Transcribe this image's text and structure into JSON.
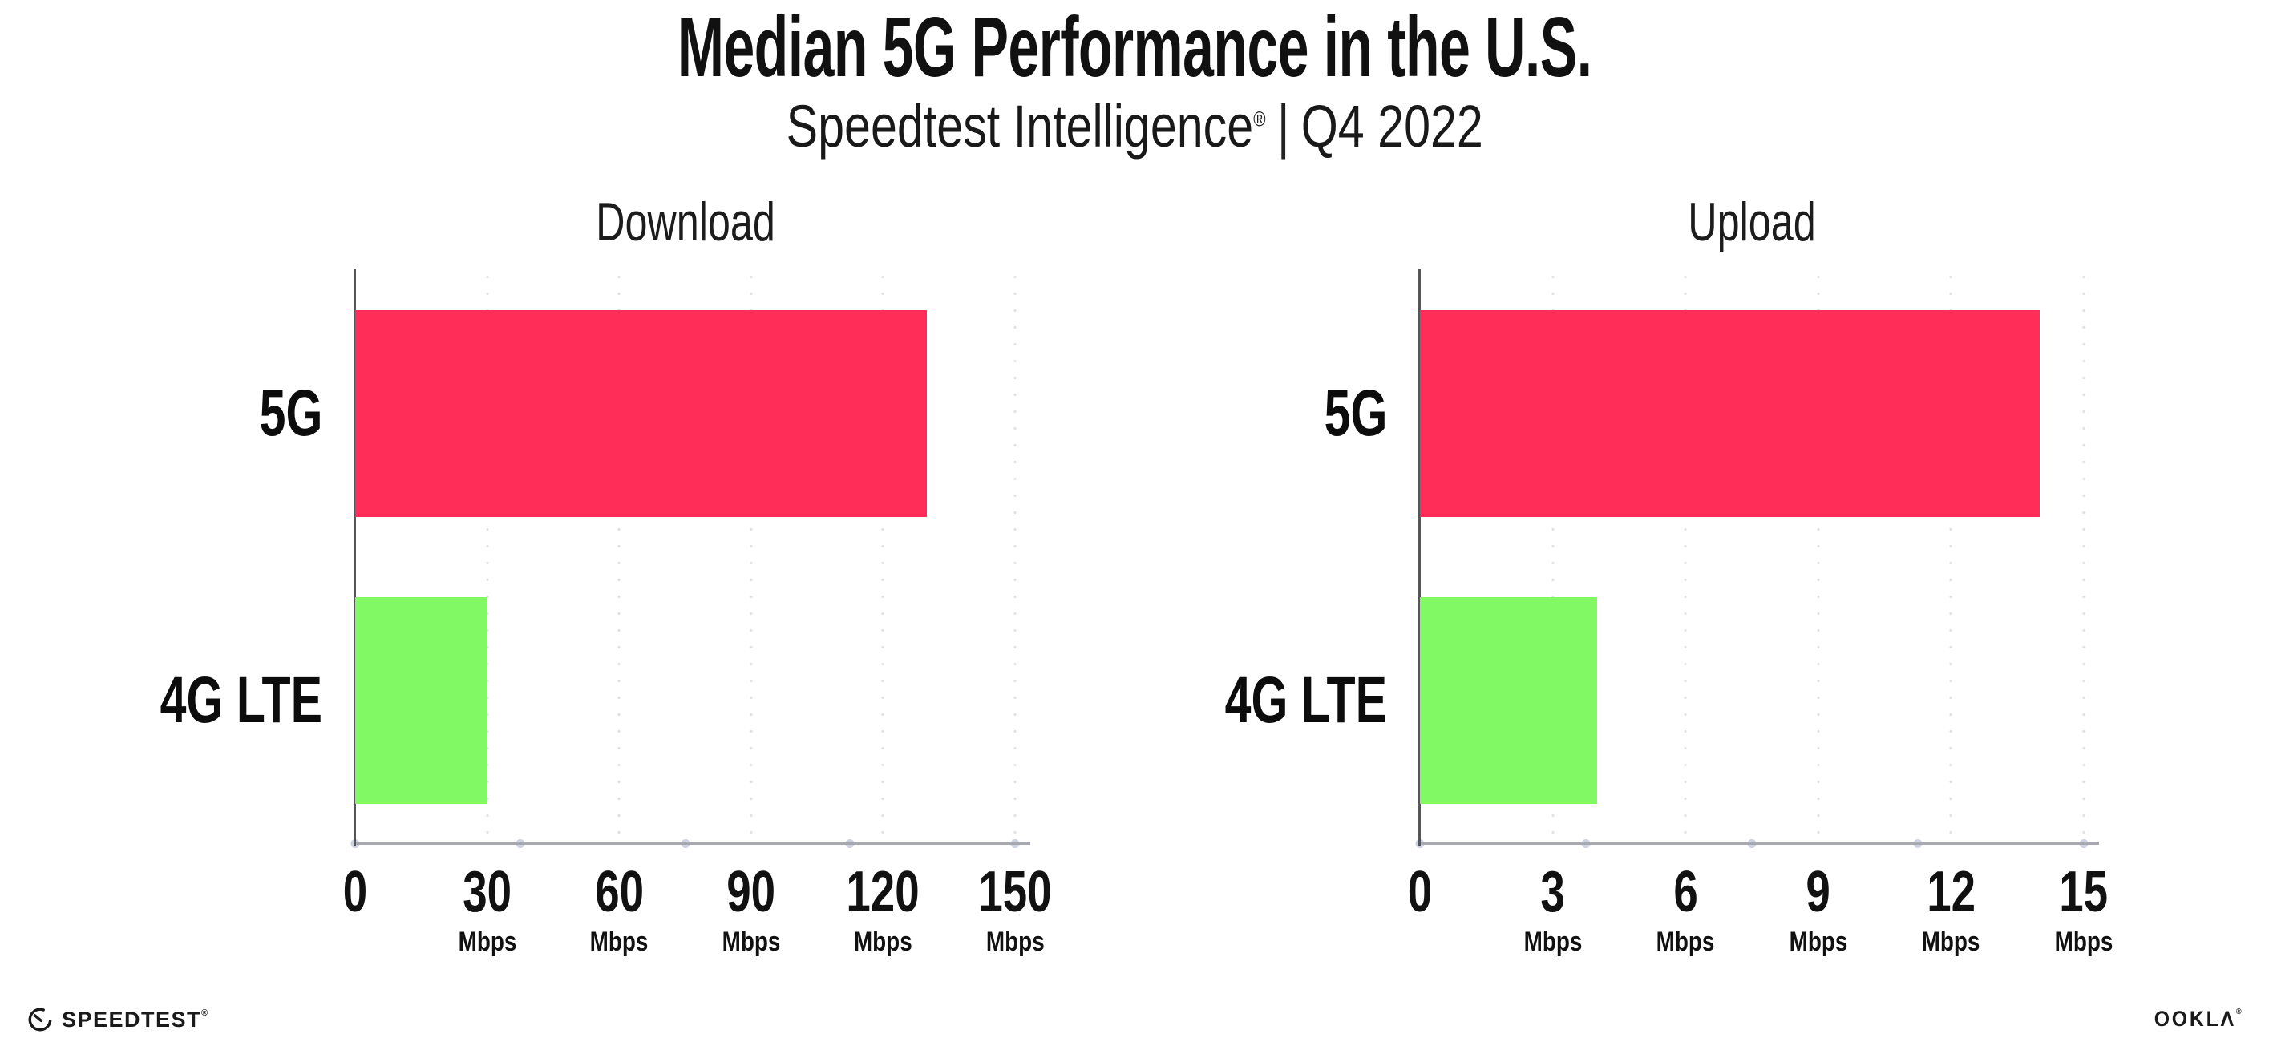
{
  "header": {
    "title": "Median 5G Performance in the U.S.",
    "subtitle": {
      "brand": "Speedtest Intelligence",
      "reg_mark": "®",
      "divider": "|",
      "period": "Q4 2022"
    }
  },
  "chart_data": [
    {
      "type": "bar",
      "orientation": "horizontal",
      "title": "Download",
      "categories": [
        "5G",
        "4G LTE"
      ],
      "values": [
        130,
        30
      ],
      "unit": "Mbps",
      "xlim": [
        0,
        150
      ],
      "xticks": [
        0,
        30,
        60,
        90,
        120,
        150
      ],
      "tick_unit_label": "Mbps",
      "bar_colors": [
        "#ff2d57",
        "#80f964"
      ],
      "grid": "dotted-vertical",
      "legend": "none"
    },
    {
      "type": "bar",
      "orientation": "horizontal",
      "title": "Upload",
      "categories": [
        "5G",
        "4G LTE"
      ],
      "values": [
        14,
        4
      ],
      "unit": "Mbps",
      "xlim": [
        0,
        15
      ],
      "xticks": [
        0,
        3,
        6,
        9,
        12,
        15
      ],
      "tick_unit_label": "Mbps",
      "bar_colors": [
        "#ff2d57",
        "#80f964"
      ],
      "grid": "dotted-vertical",
      "legend": "none"
    }
  ],
  "footer": {
    "speedtest_label": "SPEEDTEST",
    "speedtest_mark": "®",
    "ookla_label": "OOKLΛ",
    "ookla_mark": "®"
  },
  "colors": {
    "bar_5g": "#ff2d57",
    "bar_4g_lte": "#80f964",
    "x_axis_line": "#a8a8b0",
    "y_axis_line": "#55555d",
    "grid_dot": "#dfe0e8",
    "axis_quarter_dot": "#ccd2e0",
    "text": "#111111",
    "background": "#ffffff"
  }
}
